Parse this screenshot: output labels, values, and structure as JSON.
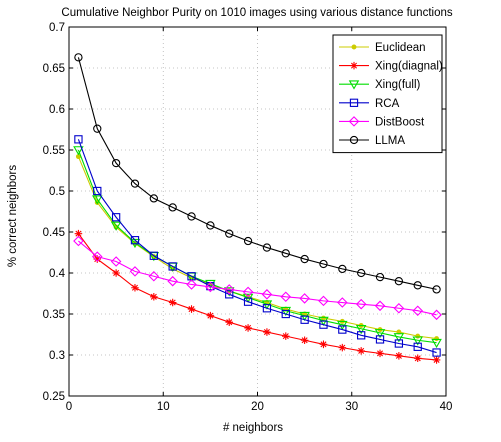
{
  "chart_data": {
    "type": "line",
    "title": "Cumulative Neighbor Purity on 1010 images using various distance functions",
    "xlabel": "# neighbors",
    "ylabel": "% correct neighbors",
    "xlim": [
      0,
      40
    ],
    "ylim": [
      0.25,
      0.7
    ],
    "xticks": [
      0,
      10,
      20,
      30,
      40
    ],
    "yticks": [
      0.25,
      0.3,
      0.35,
      0.4,
      0.45,
      0.5,
      0.55,
      0.6,
      0.65,
      0.7
    ],
    "ytick_labels": [
      "0.25",
      "0.3",
      "0.35",
      "0.4",
      "0.45",
      "0.5",
      "0.55",
      "0.6",
      "0.65",
      "0.7"
    ],
    "grid": true,
    "legend_position": "top-right",
    "x": [
      1,
      3,
      5,
      7,
      9,
      11,
      13,
      15,
      17,
      19,
      21,
      23,
      25,
      27,
      29,
      31,
      33,
      35,
      37,
      39
    ],
    "series": [
      {
        "name": "Euclidean",
        "color": "#cccc00",
        "marker": "dot",
        "values": [
          0.542,
          0.486,
          0.456,
          0.436,
          0.42,
          0.405,
          0.394,
          0.386,
          0.378,
          0.371,
          0.364,
          0.356,
          0.35,
          0.345,
          0.341,
          0.336,
          0.331,
          0.328,
          0.323,
          0.32
        ]
      },
      {
        "name": "Xing(diagnal)",
        "color": "#ff0000",
        "marker": "star",
        "values": [
          0.448,
          0.417,
          0.4,
          0.382,
          0.371,
          0.364,
          0.356,
          0.348,
          0.34,
          0.333,
          0.328,
          0.323,
          0.318,
          0.313,
          0.309,
          0.305,
          0.302,
          0.299,
          0.296,
          0.294
        ]
      },
      {
        "name": "Xing(full)",
        "color": "#00dd00",
        "marker": "triangle-down",
        "values": [
          0.55,
          0.49,
          0.458,
          0.437,
          0.421,
          0.408,
          0.396,
          0.387,
          0.378,
          0.37,
          0.362,
          0.354,
          0.348,
          0.342,
          0.337,
          0.332,
          0.327,
          0.322,
          0.318,
          0.315
        ]
      },
      {
        "name": "RCA",
        "color": "#0000cc",
        "marker": "square",
        "values": [
          0.563,
          0.5,
          0.468,
          0.44,
          0.421,
          0.408,
          0.396,
          0.384,
          0.374,
          0.365,
          0.357,
          0.35,
          0.343,
          0.337,
          0.331,
          0.324,
          0.319,
          0.314,
          0.31,
          0.303
        ]
      },
      {
        "name": "DistBoost",
        "color": "#ff00ff",
        "marker": "diamond",
        "values": [
          0.439,
          0.42,
          0.414,
          0.402,
          0.396,
          0.39,
          0.386,
          0.383,
          0.38,
          0.377,
          0.374,
          0.371,
          0.369,
          0.366,
          0.364,
          0.362,
          0.36,
          0.357,
          0.354,
          0.349
        ]
      },
      {
        "name": "LLMA",
        "color": "#000000",
        "marker": "circle",
        "values": [
          0.663,
          0.576,
          0.534,
          0.509,
          0.491,
          0.48,
          0.469,
          0.458,
          0.448,
          0.439,
          0.431,
          0.424,
          0.417,
          0.411,
          0.405,
          0.4,
          0.395,
          0.39,
          0.385,
          0.38
        ]
      }
    ]
  }
}
